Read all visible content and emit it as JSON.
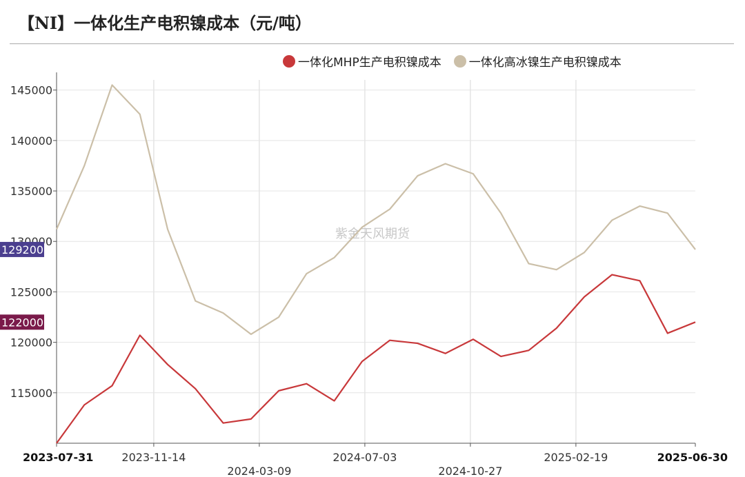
{
  "title": "【NI】一体化生产电积镍成本（元/吨）",
  "watermark": "紫金天风期货",
  "colors": {
    "series1": "#c8383a",
    "series2": "#cbbfa8",
    "label1_bg": "#7a1a4a",
    "label2_bg": "#4b3f8f"
  },
  "chart_data": {
    "type": "line",
    "title": "【NI】一体化生产电积镍成本（元/吨）",
    "xlabel": "",
    "ylabel": "",
    "ylim": [
      110000,
      146000
    ],
    "yticks": [
      115000,
      120000,
      125000,
      130000,
      135000,
      140000,
      145000
    ],
    "x": [
      "2023-07-31",
      "2023-08-31",
      "2023-09-30",
      "2023-10-31",
      "2023-11-30",
      "2023-12-31",
      "2024-01-31",
      "2024-02-29",
      "2024-03-31",
      "2024-04-30",
      "2024-05-31",
      "2024-06-30",
      "2024-07-31",
      "2024-08-31",
      "2024-09-30",
      "2024-10-31",
      "2024-11-30",
      "2024-12-31",
      "2025-01-31",
      "2025-02-28",
      "2025-03-31",
      "2025-04-30",
      "2025-05-31",
      "2025-06-30"
    ],
    "xtick_labels": [
      {
        "label": "2023-07-31",
        "bold": true,
        "row": 0,
        "index": 0
      },
      {
        "label": "2023-11-14",
        "bold": false,
        "row": 0,
        "index": 3.5
      },
      {
        "label": "2024-03-09",
        "bold": false,
        "row": 1,
        "index": 7.3
      },
      {
        "label": "2024-07-03",
        "bold": false,
        "row": 0,
        "index": 11.1
      },
      {
        "label": "2024-10-27",
        "bold": false,
        "row": 1,
        "index": 14.9
      },
      {
        "label": "2025-02-19",
        "bold": false,
        "row": 0,
        "index": 18.7
      },
      {
        "label": "2025-06-30",
        "bold": true,
        "row": 0,
        "index": 23
      }
    ],
    "vgrid_index": [
      3.5,
      7.3,
      11.1,
      14.9,
      18.7
    ],
    "grid": true,
    "legend": "top-right",
    "series": [
      {
        "name": "一体化MHP生产电积镍成本",
        "values": [
          110000,
          113800,
          115700,
          120700,
          117800,
          115400,
          112000,
          112400,
          115200,
          115900,
          114200,
          118100,
          120200,
          119900,
          118900,
          120300,
          118600,
          119200,
          121400,
          124500,
          126700,
          126100,
          120900,
          122000
        ],
        "end_label": "122000"
      },
      {
        "name": "一体化高冰镍生产电积镍成本",
        "values": [
          131200,
          137500,
          145500,
          142600,
          131200,
          124100,
          122900,
          120800,
          122500,
          126800,
          128400,
          131400,
          133200,
          136500,
          137700,
          136700,
          132800,
          127800,
          127200,
          128900,
          132100,
          133500,
          132800,
          129200
        ],
        "end_label": "129200"
      }
    ]
  }
}
